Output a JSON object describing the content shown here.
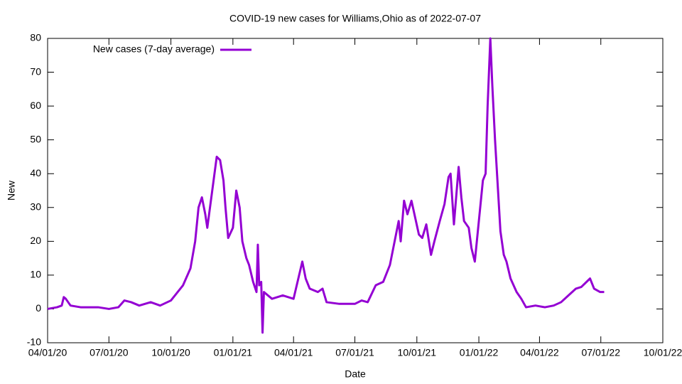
{
  "chart_data": {
    "type": "line",
    "title": "COVID-19 new cases for Williams,Ohio as of 2022-07-07",
    "x_label": "Date",
    "y_label": "New",
    "x": [
      "2020-04-01",
      "2020-04-15",
      "2020-04-22",
      "2020-04-25",
      "2020-04-28",
      "2020-05-05",
      "2020-05-20",
      "2020-06-15",
      "2020-07-01",
      "2020-07-15",
      "2020-07-24",
      "2020-08-03",
      "2020-08-15",
      "2020-09-01",
      "2020-09-15",
      "2020-10-01",
      "2020-10-19",
      "2020-10-30",
      "2020-11-06",
      "2020-11-11",
      "2020-11-16",
      "2020-11-21",
      "2020-11-24",
      "2020-11-28",
      "2020-12-08",
      "2020-12-13",
      "2020-12-18",
      "2020-12-21",
      "2020-12-25",
      "2021-01-01",
      "2021-01-06",
      "2021-01-11",
      "2021-01-15",
      "2021-01-21",
      "2021-01-25",
      "2021-01-31",
      "2021-02-05",
      "2021-02-07",
      "2021-02-09",
      "2021-02-12",
      "2021-02-14",
      "2021-02-16",
      "2021-02-28",
      "2021-03-16",
      "2021-04-01",
      "2021-04-14",
      "2021-04-19",
      "2021-04-25",
      "2021-05-07",
      "2021-05-14",
      "2021-05-20",
      "2021-06-08",
      "2021-07-01",
      "2021-07-11",
      "2021-07-20",
      "2021-08-01",
      "2021-08-12",
      "2021-08-22",
      "2021-08-31",
      "2021-09-04",
      "2021-09-07",
      "2021-09-12",
      "2021-09-17",
      "2021-09-23",
      "2021-10-04",
      "2021-10-09",
      "2021-10-15",
      "2021-10-22",
      "2021-10-27",
      "2021-11-04",
      "2021-11-11",
      "2021-11-17",
      "2021-11-20",
      "2021-11-25",
      "2021-12-02",
      "2021-12-06",
      "2021-12-10",
      "2021-12-17",
      "2021-12-21",
      "2021-12-26",
      "2022-01-02",
      "2022-01-07",
      "2022-01-11",
      "2022-01-14",
      "2022-01-18",
      "2022-01-21",
      "2022-01-25",
      "2022-02-02",
      "2022-02-07",
      "2022-02-11",
      "2022-02-17",
      "2022-02-26",
      "2022-03-05",
      "2022-03-12",
      "2022-03-26",
      "2022-04-09",
      "2022-04-22",
      "2022-05-03",
      "2022-05-14",
      "2022-05-25",
      "2022-06-02",
      "2022-06-15",
      "2022-06-21",
      "2022-06-30",
      "2022-07-06"
    ],
    "series": [
      {
        "name": "New cases (7-day average)",
        "color": "#9400d3",
        "values": [
          0,
          0.5,
          1,
          3.5,
          3,
          1,
          0.5,
          0.5,
          0,
          0.5,
          2.5,
          2,
          1,
          2,
          1,
          2.5,
          7,
          12,
          20,
          30,
          33,
          28,
          24,
          30,
          45,
          44,
          38,
          30,
          21,
          24,
          35,
          30,
          20,
          15,
          13,
          8,
          5,
          19,
          7,
          8,
          -7,
          5,
          3,
          4,
          3,
          14,
          9,
          6,
          5,
          6,
          2,
          1.5,
          1.5,
          2.5,
          2,
          7,
          8,
          13,
          22,
          26,
          20,
          32,
          28,
          32,
          22,
          21,
          25,
          16,
          20,
          26,
          31,
          39,
          40,
          25,
          42,
          33,
          26,
          24,
          18,
          14,
          28,
          38,
          40,
          60,
          80,
          66,
          50,
          23,
          16,
          14,
          9,
          5,
          3,
          0.5,
          1,
          0.5,
          1,
          2,
          4,
          6,
          6.5,
          9,
          6,
          5,
          5
        ]
      }
    ],
    "xlim": [
      "2020-04-01",
      "2022-10-01"
    ],
    "xticks": [
      {
        "value": "2020-04-01",
        "label": "04/01/20"
      },
      {
        "value": "2020-07-01",
        "label": "07/01/20"
      },
      {
        "value": "2020-10-01",
        "label": "10/01/20"
      },
      {
        "value": "2021-01-01",
        "label": "01/01/21"
      },
      {
        "value": "2021-04-01",
        "label": "04/01/21"
      },
      {
        "value": "2021-07-01",
        "label": "07/01/21"
      },
      {
        "value": "2021-10-01",
        "label": "10/01/21"
      },
      {
        "value": "2022-01-01",
        "label": "01/01/22"
      },
      {
        "value": "2022-04-01",
        "label": "04/01/22"
      },
      {
        "value": "2022-07-01",
        "label": "07/01/22"
      },
      {
        "value": "2022-10-01",
        "label": "10/01/22"
      }
    ],
    "ylim": [
      -10,
      80
    ],
    "yticks": [
      -10,
      0,
      10,
      20,
      30,
      40,
      50,
      60,
      70,
      80
    ],
    "legend": "top-left"
  }
}
